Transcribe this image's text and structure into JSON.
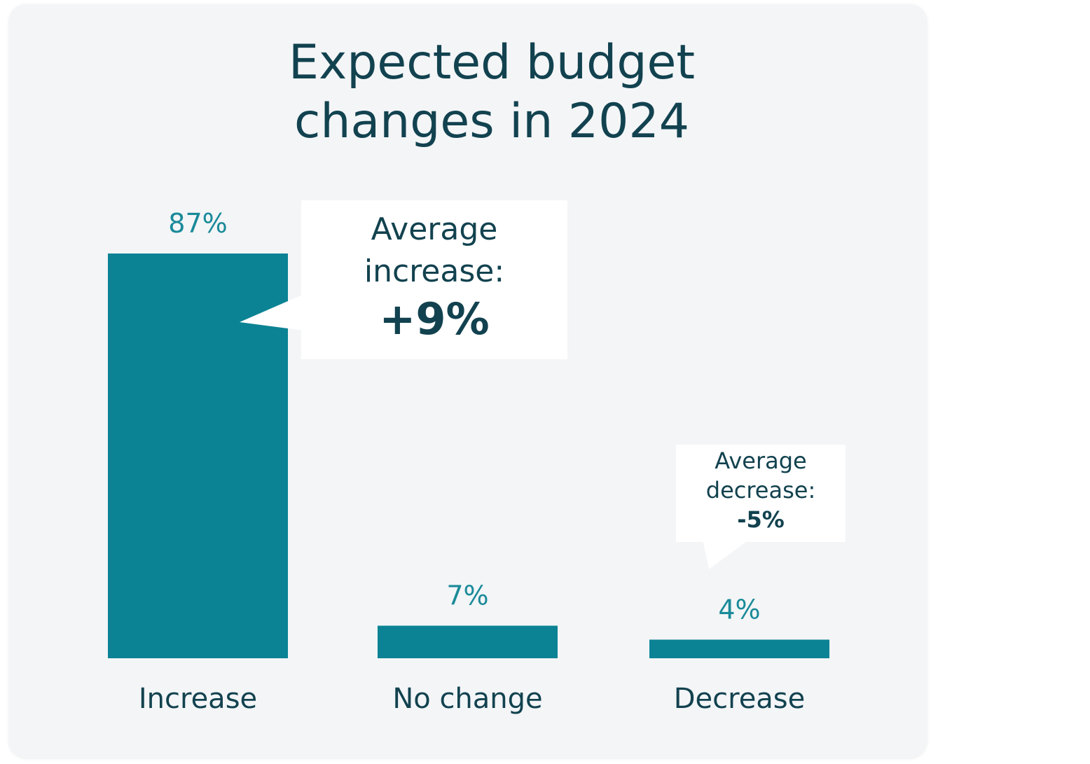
{
  "chart_data": {
    "type": "bar",
    "title_lines": [
      "Expected budget",
      "changes in 2024"
    ],
    "categories": [
      "Increase",
      "No change",
      "Decrease"
    ],
    "values": [
      87,
      7,
      4
    ],
    "value_labels": [
      "87%",
      "7%",
      "4%"
    ],
    "ylim": [
      0,
      87
    ],
    "grid": false,
    "annotations": [
      {
        "target": "Increase",
        "lines": [
          "Average",
          "increase:"
        ],
        "value": "+9%"
      },
      {
        "target": "Decrease",
        "lines": [
          "Average",
          "decrease:"
        ],
        "value": "-5%"
      }
    ]
  },
  "colors": {
    "bar": "#0b8394",
    "value_label": "#1a8a99",
    "title": "#12424f",
    "category_label": "#12424f",
    "card_background": "#f3f5f7",
    "callout_background": "#ffffff"
  }
}
